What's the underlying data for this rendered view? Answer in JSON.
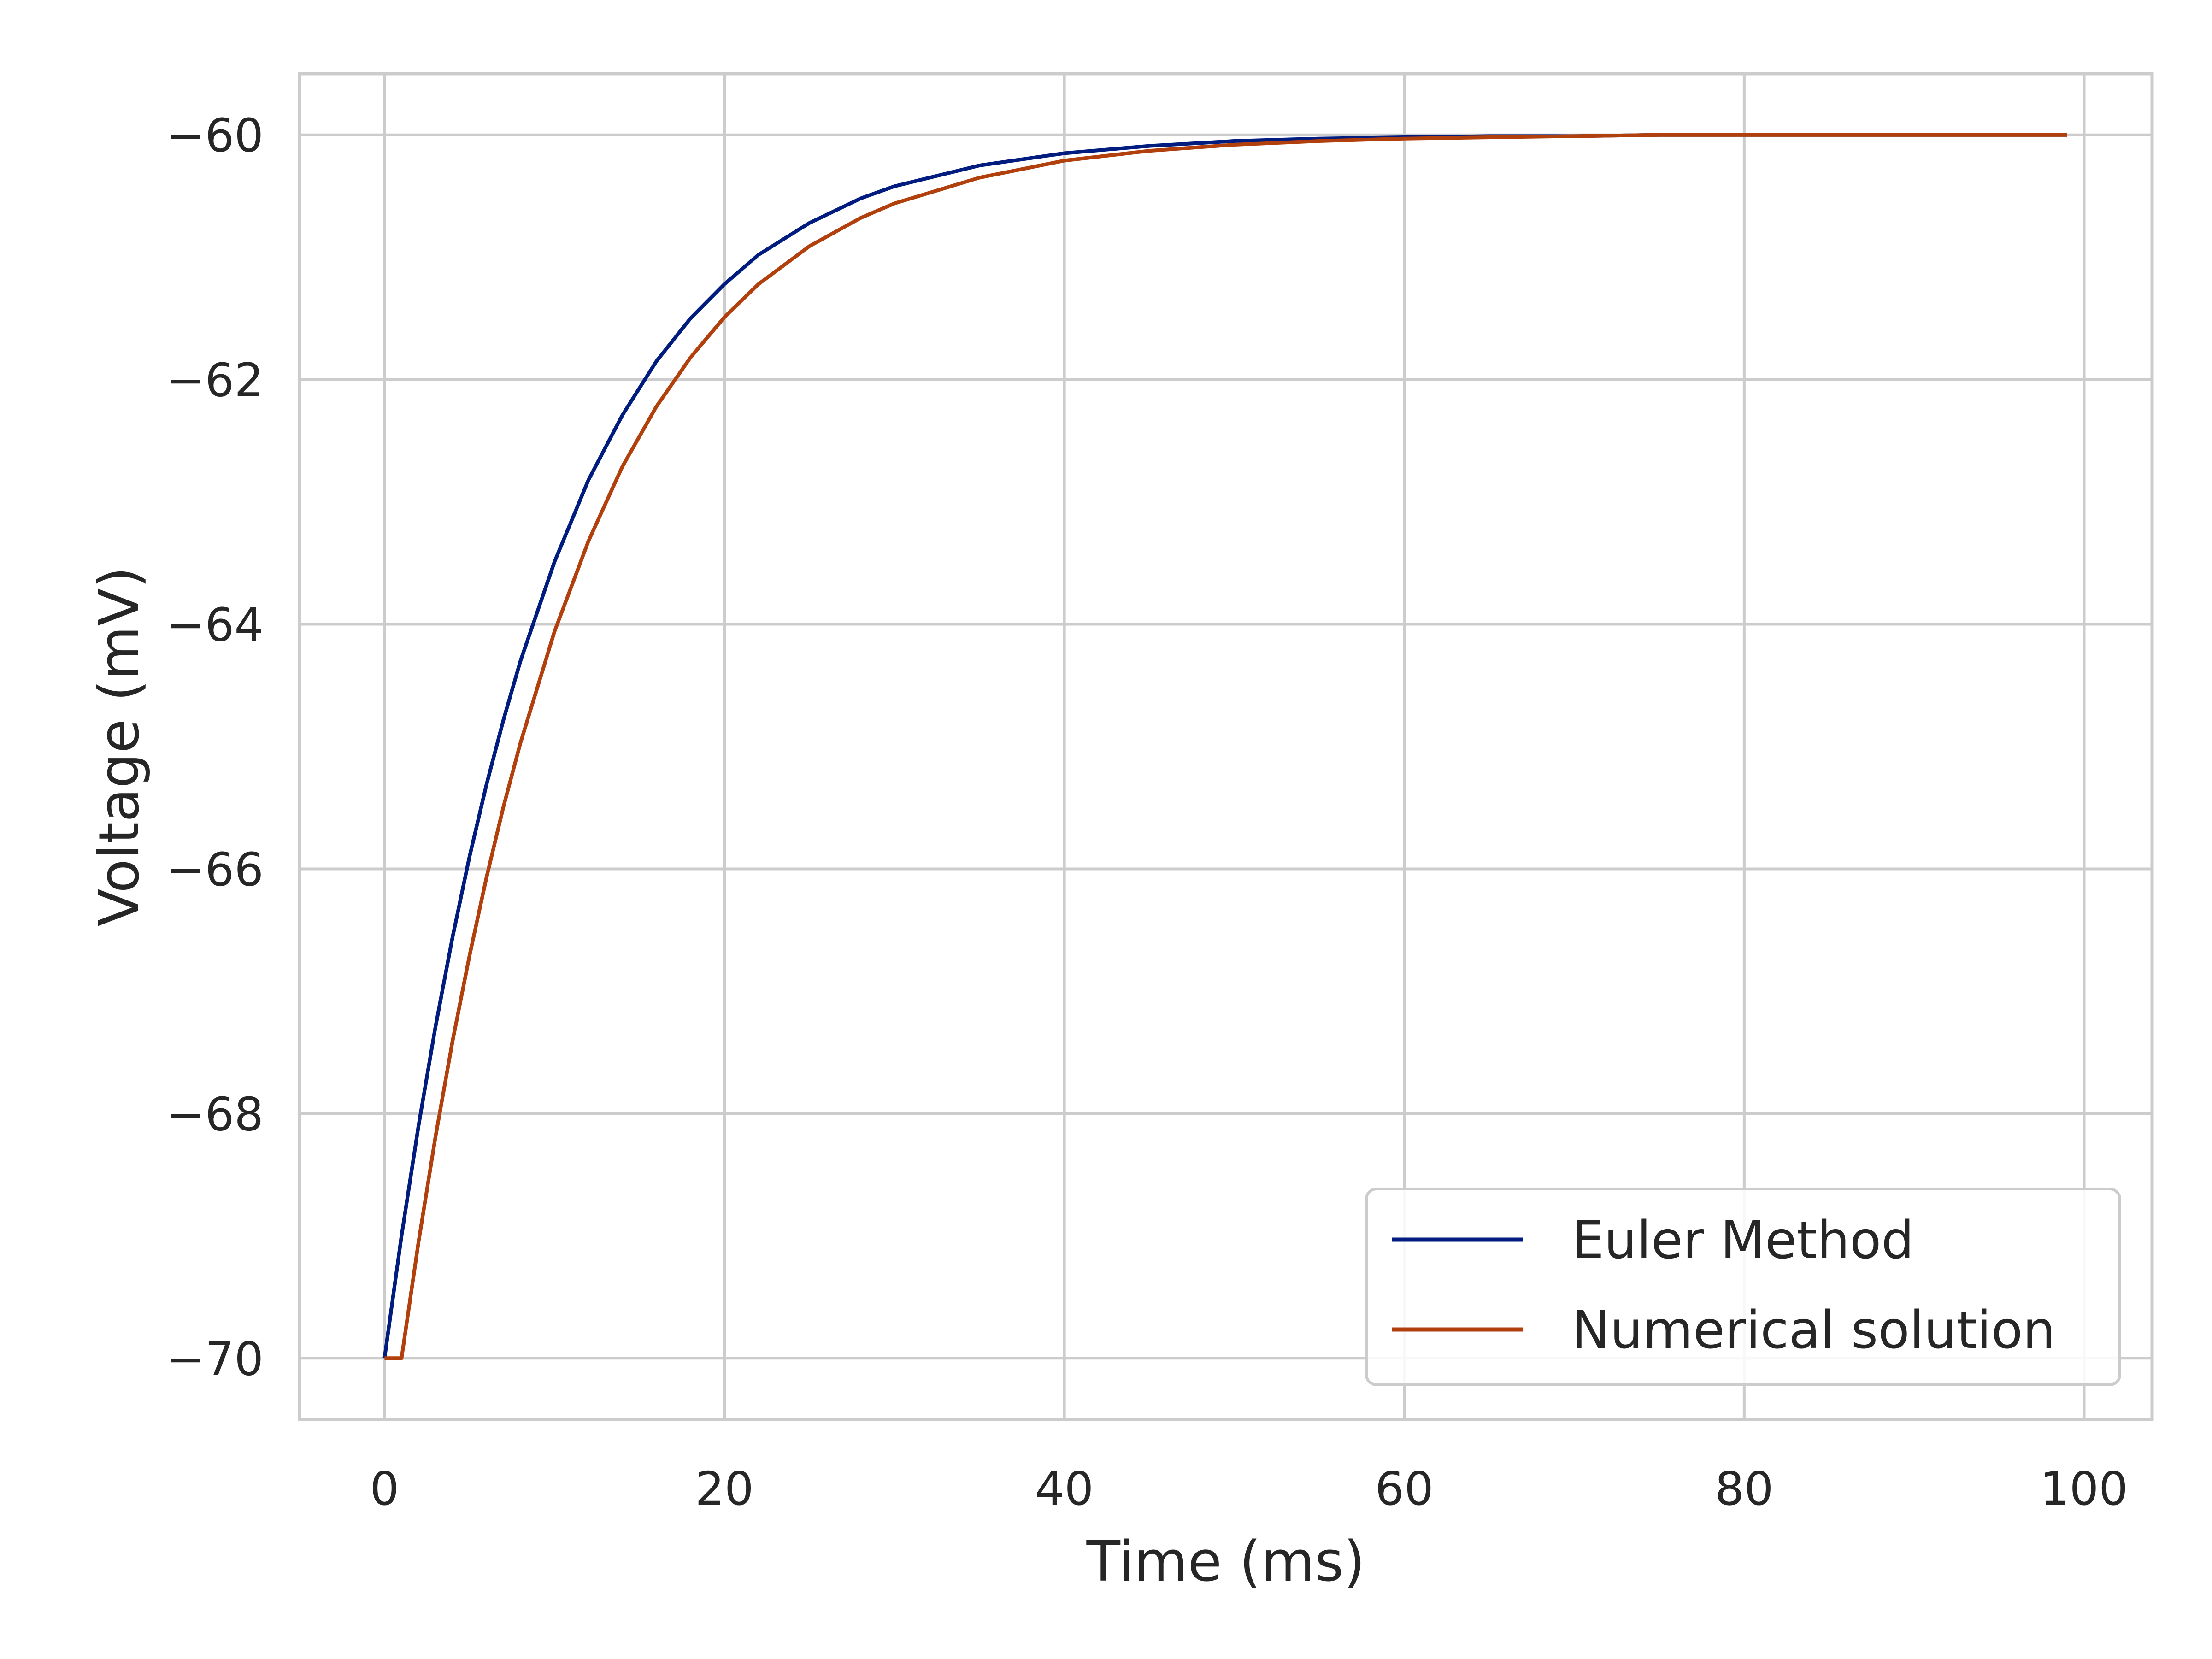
{
  "chart_data": {
    "type": "line",
    "title": "",
    "xlabel": "Time (ms)",
    "ylabel": "Voltage (mV)",
    "xlim": [
      -5,
      104
    ],
    "ylim": [
      -70.5,
      -59.5
    ],
    "x_ticks": [
      0,
      20,
      40,
      60,
      80,
      100
    ],
    "x_tick_labels": [
      "0",
      "20",
      "40",
      "60",
      "80",
      "100"
    ],
    "y_ticks": [
      -70,
      -68,
      -66,
      -64,
      -62,
      -60
    ],
    "y_tick_labels": [
      "−70",
      "−68",
      "−66",
      "−64",
      "−62",
      "−60"
    ],
    "grid": true,
    "legend_position": "lower-right",
    "x": [
      0,
      1,
      2,
      3,
      4,
      5,
      6,
      7,
      8,
      10,
      12,
      14,
      16,
      18,
      20,
      22,
      25,
      28,
      30,
      35,
      40,
      45,
      50,
      55,
      60,
      65,
      70,
      75,
      80,
      85,
      90,
      95,
      99
    ],
    "series": [
      {
        "name": "Euler Method",
        "color": "#001c7f",
        "values": [
          -70.0,
          -69.0,
          -68.1,
          -67.29,
          -66.56,
          -65.9,
          -65.31,
          -64.78,
          -64.3,
          -63.49,
          -62.82,
          -62.29,
          -61.85,
          -61.5,
          -61.22,
          -60.98,
          -60.72,
          -60.52,
          -60.42,
          -60.25,
          -60.15,
          -60.09,
          -60.05,
          -60.03,
          -60.02,
          -60.01,
          -60.01,
          -60.0,
          -60.0,
          -60.0,
          -60.0,
          -60.0,
          -60.0
        ]
      },
      {
        "name": "Numerical solution",
        "color": "#b1400d",
        "values": [
          -70.0,
          -70.0,
          -69.05,
          -68.19,
          -67.41,
          -66.71,
          -66.07,
          -65.49,
          -64.97,
          -64.06,
          -63.32,
          -62.71,
          -62.22,
          -61.82,
          -61.49,
          -61.22,
          -60.91,
          -60.68,
          -60.56,
          -60.35,
          -60.21,
          -60.13,
          -60.08,
          -60.05,
          -60.03,
          -60.02,
          -60.01,
          -60.0,
          -60.0,
          -60.0,
          -60.0,
          -60.0,
          -60.0
        ]
      }
    ]
  }
}
